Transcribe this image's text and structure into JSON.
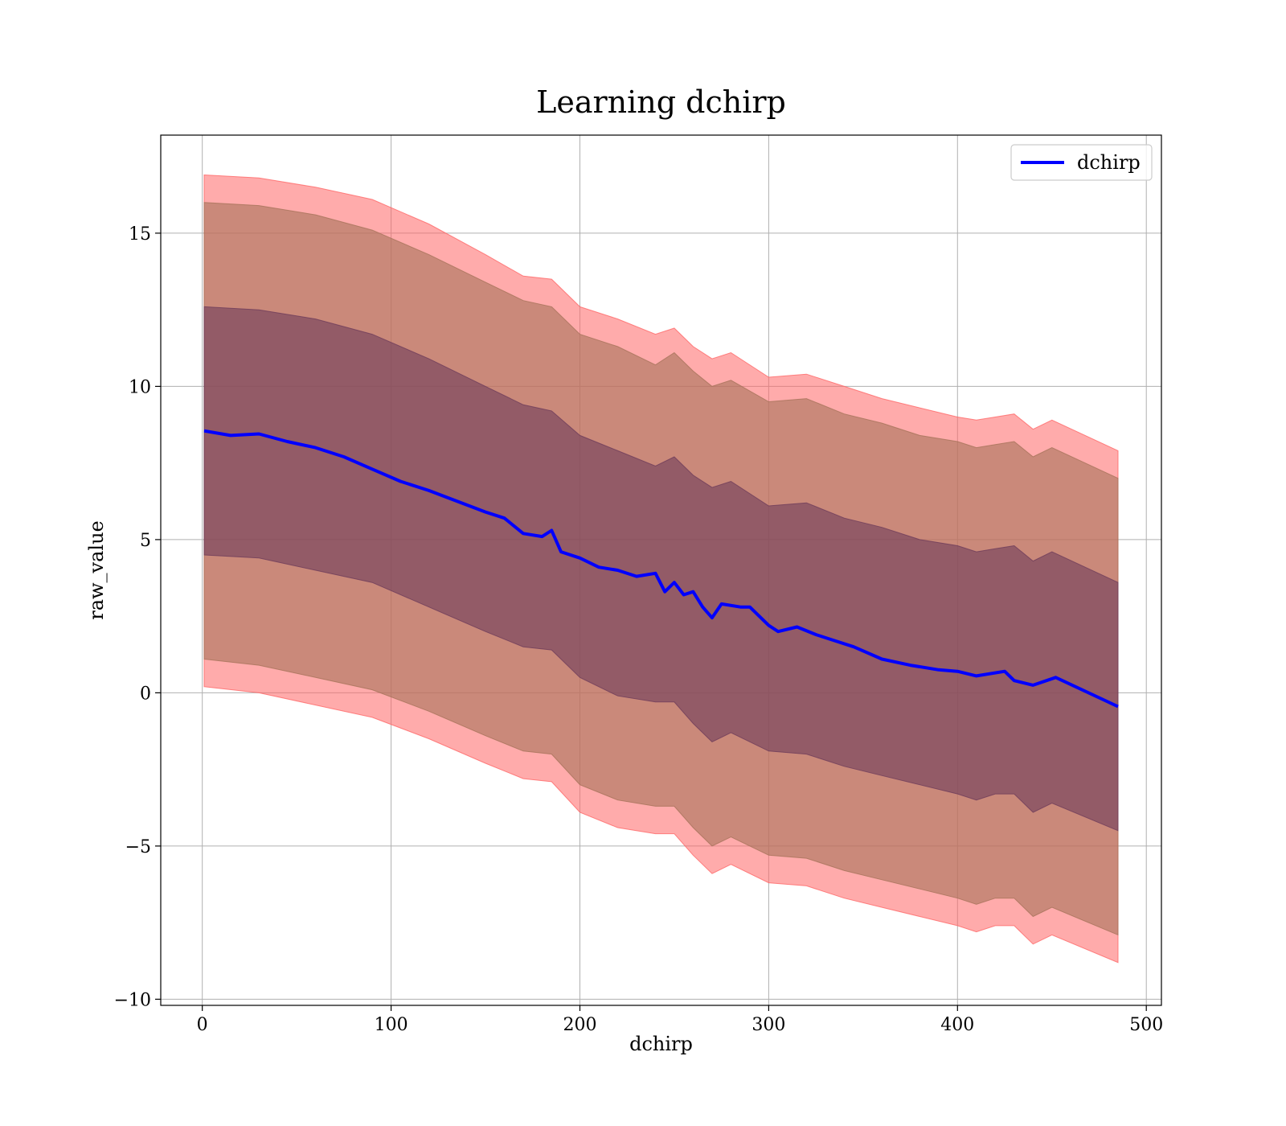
{
  "chart_data": {
    "type": "line",
    "title": "Learning dchirp",
    "xlabel": "dchirp",
    "ylabel": "raw_value",
    "xlim": [
      -22,
      508
    ],
    "ylim": [
      -10.2,
      18.2
    ],
    "xticks": [
      0,
      100,
      200,
      300,
      400,
      500
    ],
    "yticks": [
      -10,
      -5,
      0,
      5,
      10,
      15
    ],
    "xtick_labels": [
      "0",
      "100",
      "200",
      "300",
      "400",
      "500"
    ],
    "ytick_labels": [
      "−10",
      "−5",
      "0",
      "5",
      "10",
      "15"
    ],
    "grid": true,
    "legend": {
      "position": "top-right",
      "entries": [
        "dchirp"
      ]
    },
    "series": [
      {
        "name": "dchirp",
        "color": "#0000ff",
        "x": [
          1,
          15,
          30,
          45,
          60,
          75,
          90,
          105,
          120,
          135,
          150,
          160,
          170,
          180,
          185,
          190,
          200,
          210,
          220,
          230,
          240,
          245,
          250,
          255,
          260,
          265,
          270,
          275,
          285,
          290,
          300,
          305,
          315,
          325,
          335,
          345,
          360,
          375,
          390,
          400,
          410,
          425,
          430,
          440,
          452,
          485
        ],
        "y": [
          8.55,
          8.4,
          8.45,
          8.2,
          8.0,
          7.7,
          7.3,
          6.9,
          6.6,
          6.25,
          5.9,
          5.7,
          5.2,
          5.1,
          5.3,
          4.6,
          4.4,
          4.1,
          4.0,
          3.8,
          3.9,
          3.3,
          3.6,
          3.2,
          3.3,
          2.8,
          2.45,
          2.9,
          2.8,
          2.8,
          2.2,
          2.0,
          2.15,
          1.9,
          1.7,
          1.5,
          1.1,
          0.9,
          0.75,
          0.7,
          0.55,
          0.7,
          0.4,
          0.25,
          0.5,
          -0.45
        ]
      }
    ],
    "bands": [
      {
        "color": "#ff6666",
        "opacity": 0.55,
        "x": [
          1,
          30,
          60,
          90,
          120,
          150,
          170,
          185,
          200,
          220,
          240,
          250,
          260,
          270,
          280,
          300,
          320,
          340,
          360,
          380,
          400,
          410,
          420,
          430,
          440,
          450,
          485
        ],
        "upper": [
          16.9,
          16.8,
          16.5,
          16.1,
          15.3,
          14.3,
          13.6,
          13.5,
          12.6,
          12.2,
          11.7,
          11.9,
          11.3,
          10.9,
          11.1,
          10.3,
          10.4,
          10.0,
          9.6,
          9.3,
          9.0,
          8.9,
          9.0,
          9.1,
          8.6,
          8.9,
          7.9
        ],
        "lower": [
          0.2,
          0.0,
          -0.4,
          -0.8,
          -1.5,
          -2.3,
          -2.8,
          -2.9,
          -3.9,
          -4.4,
          -4.6,
          -4.6,
          -5.3,
          -5.9,
          -5.6,
          -6.2,
          -6.3,
          -6.7,
          -7.0,
          -7.3,
          -7.6,
          -7.8,
          -7.6,
          -7.6,
          -8.2,
          -7.9,
          -8.8
        ]
      },
      {
        "color": "#a6735a",
        "opacity": 0.6,
        "x": [
          1,
          30,
          60,
          90,
          120,
          150,
          170,
          185,
          200,
          220,
          240,
          250,
          260,
          270,
          280,
          300,
          320,
          340,
          360,
          380,
          400,
          410,
          420,
          430,
          440,
          450,
          485
        ],
        "upper": [
          16.0,
          15.9,
          15.6,
          15.1,
          14.3,
          13.4,
          12.8,
          12.6,
          11.7,
          11.3,
          10.7,
          11.1,
          10.5,
          10.0,
          10.2,
          9.5,
          9.6,
          9.1,
          8.8,
          8.4,
          8.2,
          8.0,
          8.1,
          8.2,
          7.7,
          8.0,
          7.0
        ],
        "lower": [
          1.1,
          0.9,
          0.5,
          0.1,
          -0.6,
          -1.4,
          -1.9,
          -2.0,
          -3.0,
          -3.5,
          -3.7,
          -3.7,
          -4.4,
          -5.0,
          -4.7,
          -5.3,
          -5.4,
          -5.8,
          -6.1,
          -6.4,
          -6.7,
          -6.9,
          -6.7,
          -6.7,
          -7.3,
          -7.0,
          -7.9
        ]
      },
      {
        "color": "#6e3c5a",
        "opacity": 0.6,
        "x": [
          1,
          30,
          60,
          90,
          120,
          150,
          170,
          185,
          200,
          220,
          240,
          250,
          260,
          270,
          280,
          300,
          320,
          340,
          360,
          380,
          400,
          410,
          420,
          430,
          440,
          450,
          485
        ],
        "upper": [
          12.6,
          12.5,
          12.2,
          11.7,
          10.9,
          10.0,
          9.4,
          9.2,
          8.4,
          7.9,
          7.4,
          7.7,
          7.1,
          6.7,
          6.9,
          6.1,
          6.2,
          5.7,
          5.4,
          5.0,
          4.8,
          4.6,
          4.7,
          4.8,
          4.3,
          4.6,
          3.6
        ],
        "lower": [
          4.5,
          4.4,
          4.0,
          3.6,
          2.8,
          2.0,
          1.5,
          1.4,
          0.5,
          -0.1,
          -0.3,
          -0.3,
          -1.0,
          -1.6,
          -1.3,
          -1.9,
          -2.0,
          -2.4,
          -2.7,
          -3.0,
          -3.3,
          -3.5,
          -3.3,
          -3.3,
          -3.9,
          -3.6,
          -4.5
        ]
      }
    ]
  }
}
